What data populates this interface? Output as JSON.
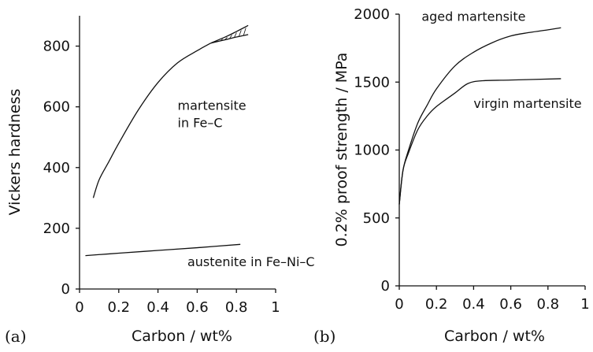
{
  "chart_data": [
    {
      "type": "line",
      "panel_label": "(a)",
      "xlabel": "Carbon / wt%",
      "ylabel": "Vickers hardness",
      "xlim": [
        0,
        1
      ],
      "ylim": [
        0,
        900
      ],
      "x_ticks": [
        0,
        0.2,
        0.4,
        0.6,
        0.8,
        1
      ],
      "x_tick_labels": [
        "0",
        "0.2",
        "0.4",
        "0.6",
        "0.8",
        "1"
      ],
      "y_ticks": [
        0,
        200,
        400,
        600,
        800
      ],
      "y_tick_labels": [
        "0",
        "200",
        "400",
        "600",
        "800"
      ],
      "grid": false,
      "series": [
        {
          "name": "martensite\nin Fe-C",
          "label_lines": [
            "martensite",
            "in Fe–C"
          ],
          "label_anchor": [
            0.5,
            590
          ],
          "x": [
            0.07,
            0.1,
            0.15,
            0.2,
            0.3,
            0.4,
            0.5,
            0.6,
            0.67
          ],
          "y": [
            300,
            360,
            420,
            480,
            590,
            680,
            745,
            785,
            810
          ]
        },
        {
          "name": "martensite upper band",
          "x": [
            0.67,
            0.75,
            0.8,
            0.86
          ],
          "y": [
            810,
            832,
            848,
            868
          ]
        },
        {
          "name": "martensite lower band",
          "x": [
            0.67,
            0.75,
            0.8,
            0.86
          ],
          "y": [
            810,
            822,
            830,
            838
          ]
        },
        {
          "name": "austenite in Fe-Ni-C",
          "label_lines": [
            "austenite in Fe–Ni–C"
          ],
          "label_anchor": [
            0.55,
            75
          ],
          "x": [
            0.03,
            0.2,
            0.4,
            0.6,
            0.82
          ],
          "y": [
            110,
            118,
            127,
            136,
            147
          ]
        }
      ],
      "hatched_region": {
        "x_start": 0.67,
        "x_end": 0.86
      }
    },
    {
      "type": "line",
      "panel_label": "(b)",
      "xlabel": "Carbon / wt%",
      "ylabel": "0.2% proof strength / MPa",
      "xlim": [
        0,
        1
      ],
      "ylim": [
        0,
        2000
      ],
      "x_ticks": [
        0,
        0.2,
        0.4,
        0.6,
        0.8,
        1
      ],
      "x_tick_labels": [
        "0",
        "0.2",
        "0.4",
        "0.6",
        "0.8",
        "1"
      ],
      "y_ticks": [
        0,
        500,
        1000,
        1500,
        2000
      ],
      "y_tick_labels": [
        "0",
        "500",
        "1000",
        "1500",
        "2000"
      ],
      "grid": false,
      "series": [
        {
          "name": "aged martensite",
          "label_lines": [
            "aged martensite"
          ],
          "label_anchor": [
            0.12,
            1950
          ],
          "x": [
            0.0,
            0.02,
            0.05,
            0.1,
            0.15,
            0.2,
            0.3,
            0.4,
            0.5,
            0.6,
            0.7,
            0.8,
            0.87
          ],
          "y": [
            600,
            850,
            1000,
            1200,
            1330,
            1450,
            1620,
            1720,
            1790,
            1840,
            1865,
            1885,
            1900
          ]
        },
        {
          "name": "virgin martensite",
          "label_lines": [
            "virgin martensite"
          ],
          "label_anchor": [
            0.4,
            1310
          ],
          "x": [
            0.0,
            0.02,
            0.05,
            0.1,
            0.15,
            0.2,
            0.3,
            0.37,
            0.45,
            0.6,
            0.87
          ],
          "y": [
            600,
            850,
            980,
            1150,
            1250,
            1320,
            1420,
            1490,
            1510,
            1515,
            1525
          ]
        }
      ]
    }
  ]
}
